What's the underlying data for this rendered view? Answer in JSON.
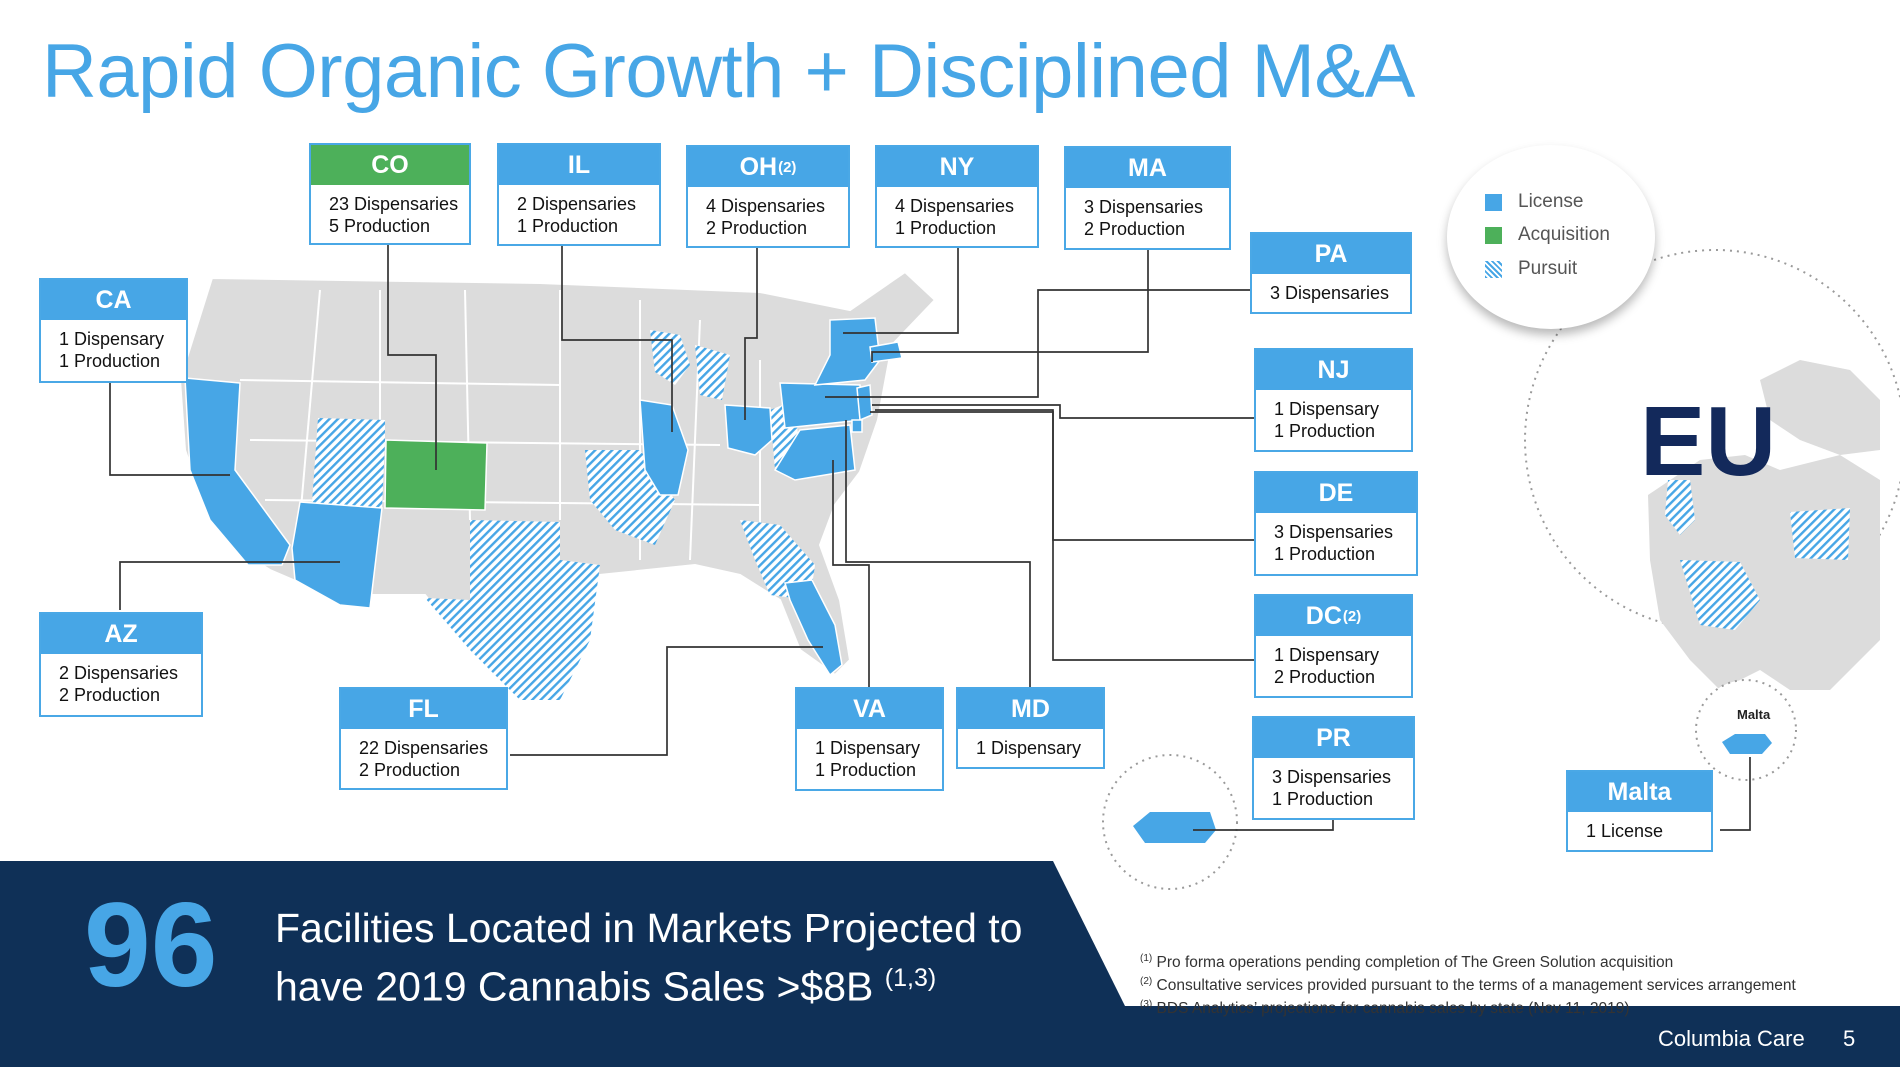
{
  "title": "Rapid Organic Growth + Disciplined M&A",
  "colors": {
    "license": "#47a6e6",
    "acquisition": "#4db05a",
    "navy": "#0f3057",
    "grey_state": "#dcdcdc"
  },
  "legend": {
    "license": "License",
    "acquisition": "Acquisition",
    "pursuit": "Pursuit"
  },
  "states": {
    "CO": {
      "name": "CO",
      "lines": [
        "23 Dispensaries",
        "5 Production"
      ],
      "status": "acquisition"
    },
    "IL": {
      "name": "IL",
      "lines": [
        "2 Dispensaries",
        "1 Production"
      ],
      "status": "license"
    },
    "OH": {
      "name": "OH",
      "sup": "(2)",
      "lines": [
        "4 Dispensaries",
        "2 Production"
      ],
      "status": "license"
    },
    "NY": {
      "name": "NY",
      "lines": [
        "4 Dispensaries",
        "1 Production"
      ],
      "status": "license"
    },
    "MA": {
      "name": "MA",
      "lines": [
        "3 Dispensaries",
        "2 Production"
      ],
      "status": "license"
    },
    "PA": {
      "name": "PA",
      "lines": [
        "3 Dispensaries"
      ],
      "status": "license"
    },
    "CA": {
      "name": "CA",
      "lines": [
        "1 Dispensary",
        "1 Production"
      ],
      "status": "license"
    },
    "NJ": {
      "name": "NJ",
      "lines": [
        "1 Dispensary",
        "1 Production"
      ],
      "status": "license"
    },
    "DE": {
      "name": "DE",
      "lines": [
        "3 Dispensaries",
        "1 Production"
      ],
      "status": "license"
    },
    "DC": {
      "name": "DC",
      "sup": "(2)",
      "lines": [
        "1 Dispensary",
        "2 Production"
      ],
      "status": "license"
    },
    "AZ": {
      "name": "AZ",
      "lines": [
        "2 Dispensaries",
        "2 Production"
      ],
      "status": "license"
    },
    "FL": {
      "name": "FL",
      "lines": [
        "22 Dispensaries",
        "2 Production"
      ],
      "status": "license"
    },
    "VA": {
      "name": "VA",
      "lines": [
        "1 Dispensary",
        "1 Production"
      ],
      "status": "license"
    },
    "MD": {
      "name": "MD",
      "lines": [
        "1 Dispensary"
      ],
      "status": "license"
    },
    "PR": {
      "name": "PR",
      "lines": [
        "3 Dispensaries",
        "1 Production"
      ],
      "status": "license"
    },
    "Malta": {
      "name": "Malta",
      "lines": [
        "1 License"
      ],
      "status": "license"
    }
  },
  "eu_label": "EU",
  "malta_map_label": "Malta",
  "stat": {
    "number": "96",
    "text_line1": "Facilities Located in Markets Projected to",
    "text_line2": "have 2019 Cannabis Sales >$8B",
    "text_sup": "(1,3)"
  },
  "footnotes": [
    {
      "mark": "(1)",
      "text": "Pro forma operations pending completion of The Green Solution acquisition"
    },
    {
      "mark": "(2)",
      "text": "Consultative services provided pursuant to the terms of a management services arrangement"
    },
    {
      "mark": "(3)",
      "text": "BDS Analytics’ projections for cannabis sales by state (Nov 11, 2019)"
    }
  ],
  "brand": "Columbia Care",
  "page_number": "5"
}
